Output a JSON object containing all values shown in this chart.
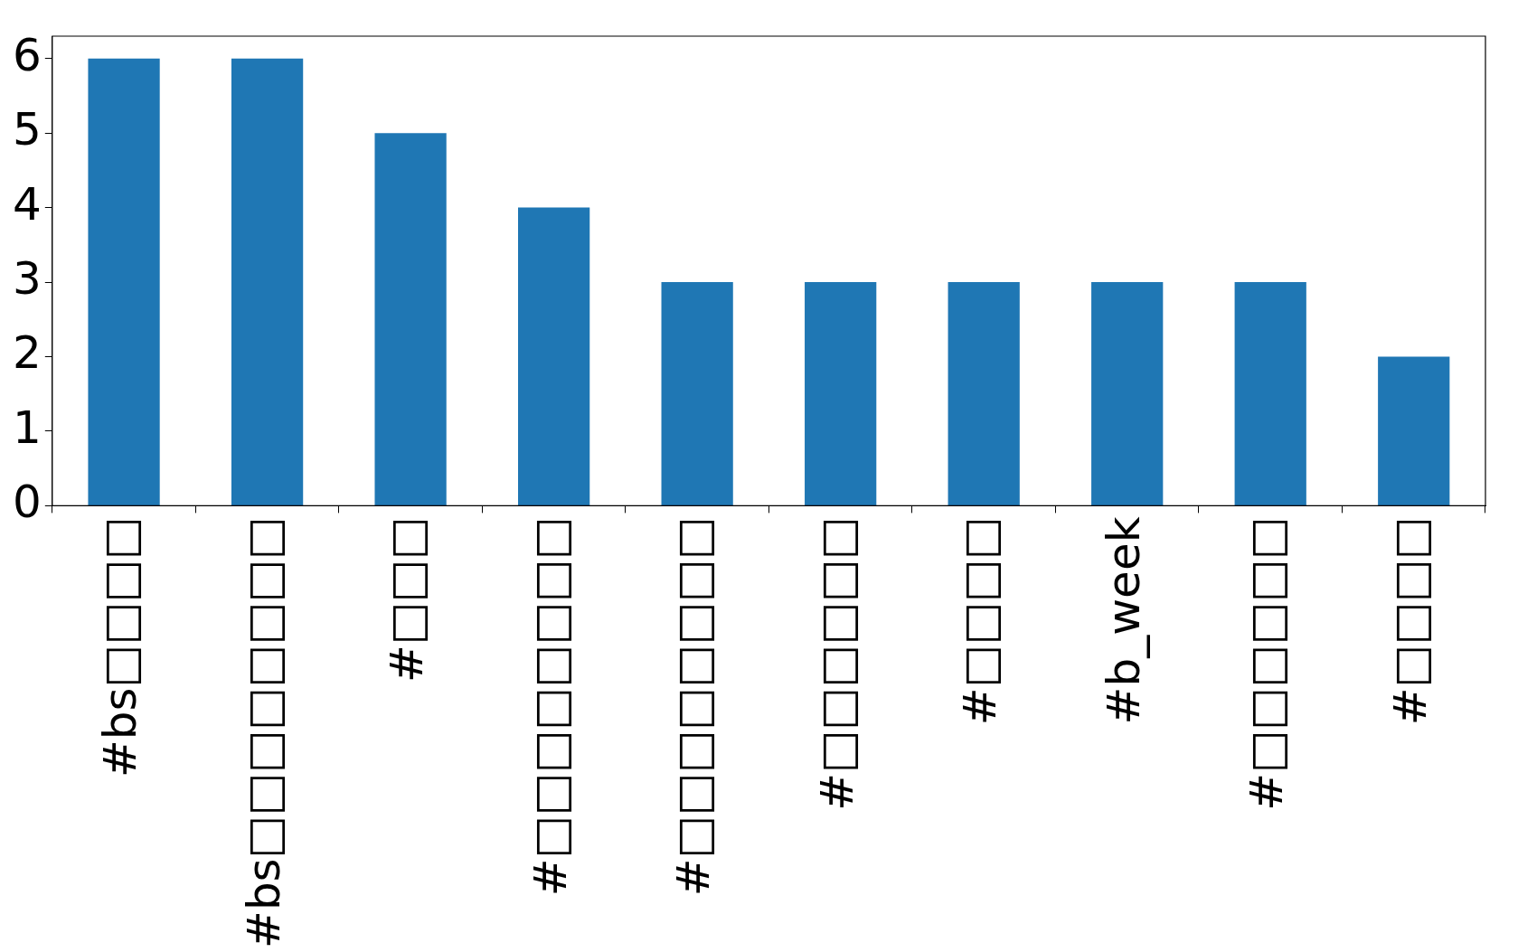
{
  "chart_data": {
    "type": "bar",
    "categories": [
      "#bs□□□□",
      "#bs□□□□□□□□",
      "#□□□",
      "#□□□□□□□□",
      "#□□□□□□□□",
      "#□□□□□□",
      "#□□□□",
      "#b_week",
      "#□□□□□□",
      "#□□□□"
    ],
    "values": [
      6,
      6,
      5,
      4,
      3,
      3,
      3,
      3,
      3,
      2
    ],
    "color": "#1f77b4",
    "ylim": [
      0,
      6.3
    ],
    "yticks": [
      0,
      1,
      2,
      3,
      4,
      5,
      6
    ],
    "grid": false,
    "legend": false
  }
}
